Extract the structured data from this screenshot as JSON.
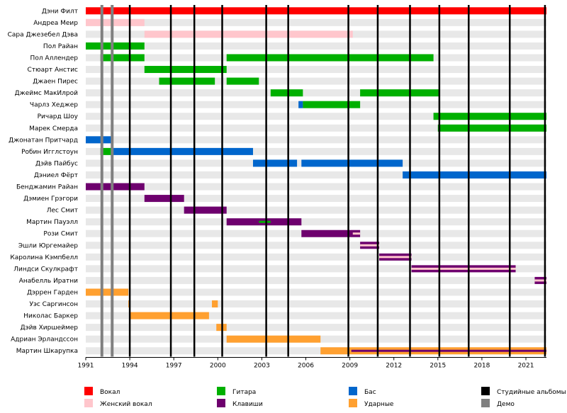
{
  "colors": {
    "vocal": "#ff0000",
    "female_vocal": "#ffc6cc",
    "guitar": "#00b000",
    "bass": "#0066cc",
    "keys": "#6e006e",
    "drums": "#ffa030",
    "studio": "#000000",
    "demo": "#808080",
    "band_light": "#e8e8e8"
  },
  "chart_data": {
    "type": "timeline",
    "title": "",
    "xlim": [
      1991,
      2022.4
    ],
    "x_ticks": [
      {
        "value": 1991,
        "label": "1991"
      },
      {
        "value": 1994,
        "label": "1994"
      },
      {
        "value": 1997,
        "label": "1997"
      },
      {
        "value": 2000,
        "label": "2000"
      },
      {
        "value": 2003,
        "label": "2003"
      },
      {
        "value": 2006,
        "label": "2006"
      },
      {
        "value": 2009,
        "label": "2009"
      },
      {
        "value": 2012,
        "label": "2012"
      },
      {
        "value": 2015,
        "label": "2015"
      },
      {
        "value": 2018,
        "label": "2018"
      },
      {
        "value": 2021,
        "label": "2021"
      }
    ],
    "studio_albums": [
      1994,
      1996.8,
      1998.4,
      2000.3,
      2003.3,
      2004.8,
      2008.9,
      2010.9,
      2013.1,
      2015.1,
      2017.1,
      2019.9,
      2022.3
    ],
    "demos": [
      1992.1,
      1992.8
    ],
    "legend": [
      {
        "key": "vocal",
        "label": "Вокал"
      },
      {
        "key": "female_vocal",
        "label": "Женский вокал"
      },
      {
        "key": "guitar",
        "label": "Гитара"
      },
      {
        "key": "keys",
        "label": "Клавиши"
      },
      {
        "key": "bass",
        "label": "Бас"
      },
      {
        "key": "drums",
        "label": "Ударные"
      },
      {
        "key": "studio",
        "label": "Студийные альбомы"
      },
      {
        "key": "demo",
        "label": "Демо"
      }
    ],
    "members": [
      {
        "name": "Дэни Филт",
        "spans": [
          {
            "role": "vocal",
            "from": 1991,
            "to": 2022.4
          }
        ]
      },
      {
        "name": "Андреа Меир",
        "spans": [
          {
            "role": "female_vocal",
            "from": 1991,
            "to": 1995
          }
        ]
      },
      {
        "name": "Сара Джезебел Дэва",
        "spans": [
          {
            "role": "female_vocal",
            "from": 1995,
            "to": 2009.2
          }
        ]
      },
      {
        "name": "Пол Райан",
        "spans": [
          {
            "role": "guitar",
            "from": 1991,
            "to": 1995
          }
        ]
      },
      {
        "name": "Пол Аллендер",
        "spans": [
          {
            "role": "guitar",
            "from": 1992,
            "to": 1995
          },
          {
            "role": "guitar",
            "from": 2000.6,
            "to": 2014.7
          }
        ]
      },
      {
        "name": "Стюарт Анстис",
        "spans": [
          {
            "role": "guitar",
            "from": 1995,
            "to": 2000.6
          }
        ]
      },
      {
        "name": "Джаен Пирес",
        "spans": [
          {
            "role": "guitar",
            "from": 1996,
            "to": 1999.8
          },
          {
            "role": "guitar",
            "from": 2000.6,
            "to": 2002.8
          }
        ]
      },
      {
        "name": "Джеймс МакИлрой",
        "spans": [
          {
            "role": "guitar",
            "from": 2003.6,
            "to": 2005.8
          },
          {
            "role": "guitar",
            "from": 2009.7,
            "to": 2015.1
          }
        ]
      },
      {
        "name": "Чарлз Хеджер",
        "spans": [
          {
            "role": "bass",
            "from": 2005.5,
            "to": 2005.8
          },
          {
            "role": "guitar",
            "from": 2005.8,
            "to": 2009.7
          }
        ]
      },
      {
        "name": "Ричард Шоу",
        "spans": [
          {
            "role": "guitar",
            "from": 2014.7,
            "to": 2022.4
          }
        ]
      },
      {
        "name": "Марек Смерда",
        "spans": [
          {
            "role": "guitar",
            "from": 2015,
            "to": 2022.4
          }
        ]
      },
      {
        "name": "Джонатан Притчард",
        "spans": [
          {
            "role": "bass",
            "from": 1991,
            "to": 1992.8
          }
        ]
      },
      {
        "name": "Робин Игглстоун",
        "spans": [
          {
            "role": "guitar",
            "from": 1992,
            "to": 1992.8
          },
          {
            "role": "bass",
            "from": 1992.8,
            "to": 2002.4
          }
        ]
      },
      {
        "name": "Дэйв Пайбус",
        "spans": [
          {
            "role": "bass",
            "from": 2002.4,
            "to": 2005.4
          },
          {
            "role": "bass",
            "from": 2005.7,
            "to": 2012.6
          }
        ]
      },
      {
        "name": "Дэниел Фёрт",
        "spans": [
          {
            "role": "bass",
            "from": 2012.6,
            "to": 2022.4
          }
        ]
      },
      {
        "name": "Бенджамин Райан",
        "spans": [
          {
            "role": "keys",
            "from": 1991,
            "to": 1995
          }
        ]
      },
      {
        "name": "Дэмиен Грэгори",
        "spans": [
          {
            "role": "keys",
            "from": 1995,
            "to": 1997.7
          }
        ]
      },
      {
        "name": "Лес Смит",
        "spans": [
          {
            "role": "keys",
            "from": 1997.7,
            "to": 2000.6
          }
        ]
      },
      {
        "name": "Мартин Пауэлл",
        "spans": [
          {
            "role": "keys",
            "from": 2000.6,
            "to": 2005.7
          }
        ],
        "overlays": [
          {
            "role": "guitar",
            "from": 2002.8,
            "to": 2003.6
          }
        ]
      },
      {
        "name": "Рози Смит",
        "spans": [
          {
            "role": "keys",
            "from": 2005.7,
            "to": 2009.7
          }
        ],
        "overlays": [
          {
            "role": "female_vocal",
            "from": 2009.2,
            "to": 2009.7
          }
        ]
      },
      {
        "name": "Эшли Юргемайер",
        "spans": [
          {
            "role": "keys",
            "from": 2009.7,
            "to": 2011
          }
        ],
        "overlays": [
          {
            "role": "female_vocal",
            "from": 2009.7,
            "to": 2011
          }
        ]
      },
      {
        "name": "Каролина Кэмпбелл",
        "spans": [
          {
            "role": "keys",
            "from": 2011,
            "to": 2013.2
          }
        ],
        "overlays": [
          {
            "role": "female_vocal",
            "from": 2011,
            "to": 2013.2
          }
        ]
      },
      {
        "name": "Линдси Скулкрафт",
        "spans": [
          {
            "role": "keys",
            "from": 2013.2,
            "to": 2020.3
          }
        ],
        "overlays": [
          {
            "role": "female_vocal",
            "from": 2013.2,
            "to": 2020.3
          }
        ]
      },
      {
        "name": "Анабелль Иратни",
        "spans": [
          {
            "role": "keys",
            "from": 2021.6,
            "to": 2022.4
          }
        ],
        "overlays": [
          {
            "role": "female_vocal",
            "from": 2021.6,
            "to": 2022.4
          }
        ]
      },
      {
        "name": "Дэррен Гарден",
        "spans": [
          {
            "role": "drums",
            "from": 1991,
            "to": 1993.9
          }
        ]
      },
      {
        "name": "Уэс Саргинсон",
        "spans": [
          {
            "role": "drums",
            "from": 1993.9,
            "to": 1994
          },
          {
            "role": "drums",
            "from": 1999.6,
            "to": 2000
          }
        ]
      },
      {
        "name": "Николас Баркер",
        "spans": [
          {
            "role": "drums",
            "from": 1994,
            "to": 1999.4
          }
        ]
      },
      {
        "name": "Дэйв Хиршеймер",
        "spans": [
          {
            "role": "drums",
            "from": 1999.9,
            "to": 2000.6
          }
        ]
      },
      {
        "name": "Адриан Эрландссон",
        "spans": [
          {
            "role": "drums",
            "from": 2000.6,
            "to": 2007
          }
        ]
      },
      {
        "name": "Мартин Шкарупка",
        "spans": [
          {
            "role": "drums",
            "from": 2007,
            "to": 2022.4
          }
        ],
        "overlays": [
          {
            "role": "keys",
            "from": 2009.1,
            "to": 2022.4
          }
        ]
      }
    ]
  }
}
